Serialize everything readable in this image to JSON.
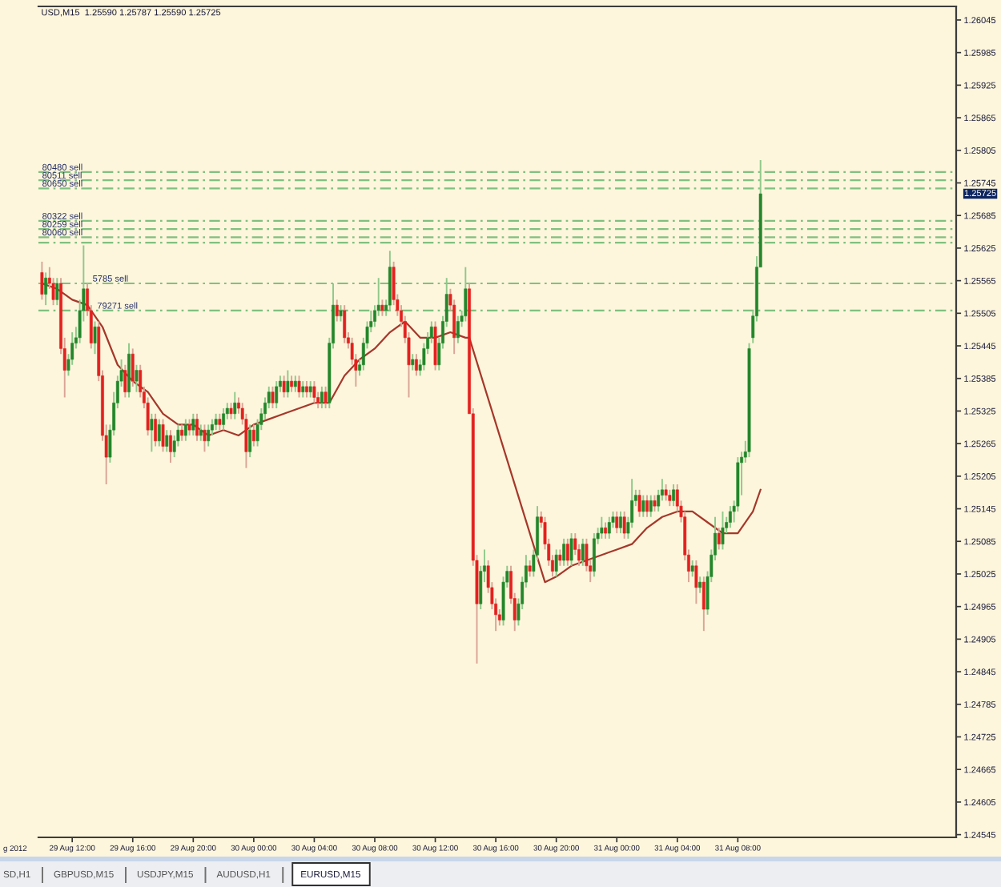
{
  "chart_data": {
    "type": "candlestick",
    "title": "USD,M15  1.25590 1.25787 1.25590 1.25725",
    "x": [
      "2012-08-29T10:00",
      "2012-08-29T10:15",
      "2012-08-29T10:30",
      "2012-08-29T10:45",
      "2012-08-29T11:00",
      "2012-08-29T11:15",
      "2012-08-29T11:30",
      "2012-08-29T11:45",
      "2012-08-29T12:00",
      "2012-08-29T12:15",
      "2012-08-29T12:30",
      "2012-08-29T12:45",
      "2012-08-29T13:00",
      "2012-08-29T13:15",
      "2012-08-29T13:30",
      "2012-08-29T13:45",
      "2012-08-29T14:00",
      "2012-08-29T14:15",
      "2012-08-29T14:30",
      "2012-08-29T14:45",
      "2012-08-29T15:00",
      "2012-08-29T15:15",
      "2012-08-29T15:30",
      "2012-08-29T15:45",
      "2012-08-29T16:00",
      "2012-08-29T16:15",
      "2012-08-29T16:30",
      "2012-08-29T16:45",
      "2012-08-29T17:00",
      "2012-08-29T17:15",
      "2012-08-29T17:30",
      "2012-08-29T17:45",
      "2012-08-29T18:00",
      "2012-08-29T18:15",
      "2012-08-29T18:30",
      "2012-08-29T18:45",
      "2012-08-29T19:00",
      "2012-08-29T19:15",
      "2012-08-29T19:30",
      "2012-08-29T19:45",
      "2012-08-29T20:00",
      "2012-08-29T20:15",
      "2012-08-29T20:30",
      "2012-08-29T20:45",
      "2012-08-29T21:00",
      "2012-08-29T21:15",
      "2012-08-29T21:30",
      "2012-08-29T21:45",
      "2012-08-29T22:00",
      "2012-08-29T22:15",
      "2012-08-29T22:30",
      "2012-08-29T22:45",
      "2012-08-29T23:00",
      "2012-08-29T23:15",
      "2012-08-29T23:30",
      "2012-08-29T23:45",
      "2012-08-30T00:00",
      "2012-08-30T00:15",
      "2012-08-30T00:30",
      "2012-08-30T00:45",
      "2012-08-30T01:00",
      "2012-08-30T01:15",
      "2012-08-30T01:30",
      "2012-08-30T01:45",
      "2012-08-30T02:00",
      "2012-08-30T02:15",
      "2012-08-30T02:30",
      "2012-08-30T02:45",
      "2012-08-30T03:00",
      "2012-08-30T03:15",
      "2012-08-30T03:30",
      "2012-08-30T03:45",
      "2012-08-30T04:00",
      "2012-08-30T04:15",
      "2012-08-30T04:30",
      "2012-08-30T04:45",
      "2012-08-30T05:00",
      "2012-08-30T05:15",
      "2012-08-30T05:30",
      "2012-08-30T05:45",
      "2012-08-30T06:00",
      "2012-08-30T06:15",
      "2012-08-30T06:30",
      "2012-08-30T06:45",
      "2012-08-30T07:00",
      "2012-08-30T07:15",
      "2012-08-30T07:30",
      "2012-08-30T07:45",
      "2012-08-30T08:00",
      "2012-08-30T08:15",
      "2012-08-30T08:30",
      "2012-08-30T08:45",
      "2012-08-30T09:00",
      "2012-08-30T09:15",
      "2012-08-30T09:30",
      "2012-08-30T09:45",
      "2012-08-30T10:00",
      "2012-08-30T10:15",
      "2012-08-30T10:30",
      "2012-08-30T10:45",
      "2012-08-30T11:00",
      "2012-08-30T11:15",
      "2012-08-30T11:30",
      "2012-08-30T11:45",
      "2012-08-30T12:00",
      "2012-08-30T12:15",
      "2012-08-30T12:30",
      "2012-08-30T12:45",
      "2012-08-30T13:00",
      "2012-08-30T13:15",
      "2012-08-30T13:30",
      "2012-08-30T13:45",
      "2012-08-30T14:00",
      "2012-08-30T14:15",
      "2012-08-30T14:30",
      "2012-08-30T14:45",
      "2012-08-30T15:00",
      "2012-08-30T15:15",
      "2012-08-30T15:30",
      "2012-08-30T15:45",
      "2012-08-30T16:00",
      "2012-08-30T16:15",
      "2012-08-30T16:30",
      "2012-08-30T16:45",
      "2012-08-30T17:00",
      "2012-08-30T17:15",
      "2012-08-30T17:30",
      "2012-08-30T17:45",
      "2012-08-30T18:00",
      "2012-08-30T18:15",
      "2012-08-30T18:30",
      "2012-08-30T18:45",
      "2012-08-30T19:00",
      "2012-08-30T19:15",
      "2012-08-30T19:30",
      "2012-08-30T19:45",
      "2012-08-30T20:00",
      "2012-08-30T20:15",
      "2012-08-30T20:30",
      "2012-08-30T20:45",
      "2012-08-30T21:00",
      "2012-08-30T21:15",
      "2012-08-30T21:30",
      "2012-08-30T21:45",
      "2012-08-30T22:00",
      "2012-08-30T22:15",
      "2012-08-30T22:30",
      "2012-08-30T22:45",
      "2012-08-30T23:00",
      "2012-08-30T23:15",
      "2012-08-30T23:30",
      "2012-08-30T23:45",
      "2012-08-31T00:00",
      "2012-08-31T00:15",
      "2012-08-31T00:30",
      "2012-08-31T00:45",
      "2012-08-31T01:00",
      "2012-08-31T01:15",
      "2012-08-31T01:30",
      "2012-08-31T01:45",
      "2012-08-31T02:00",
      "2012-08-31T02:15",
      "2012-08-31T02:30",
      "2012-08-31T02:45",
      "2012-08-31T03:00",
      "2012-08-31T03:15",
      "2012-08-31T03:30",
      "2012-08-31T03:45",
      "2012-08-31T04:00",
      "2012-08-31T04:15",
      "2012-08-31T04:30",
      "2012-08-31T04:45",
      "2012-08-31T05:00",
      "2012-08-31T05:15",
      "2012-08-31T05:30",
      "2012-08-31T05:45",
      "2012-08-31T06:00",
      "2012-08-31T06:15",
      "2012-08-31T06:30",
      "2012-08-31T06:45",
      "2012-08-31T07:00",
      "2012-08-31T07:15",
      "2012-08-31T07:30",
      "2012-08-31T07:45",
      "2012-08-31T08:00",
      "2012-08-31T08:15",
      "2012-08-31T08:30",
      "2012-08-31T08:45",
      "2012-08-31T09:00",
      "2012-08-31T09:15",
      "2012-08-31T09:30"
    ],
    "ohlc": [
      [
        1.2558,
        1.256,
        1.2553,
        1.2554
      ],
      [
        1.2554,
        1.2558,
        1.2552,
        1.2557
      ],
      [
        1.2557,
        1.2559,
        1.2555,
        1.2556
      ],
      [
        1.2556,
        1.2557,
        1.2552,
        1.2553
      ],
      [
        1.2553,
        1.2557,
        1.2552,
        1.2556
      ],
      [
        1.2556,
        1.2557,
        1.2543,
        1.2544
      ],
      [
        1.2544,
        1.2546,
        1.2535,
        1.254
      ],
      [
        1.254,
        1.2543,
        1.2539,
        1.2542
      ],
      [
        1.2542,
        1.2547,
        1.2541,
        1.2545
      ],
      [
        1.2545,
        1.2548,
        1.2544,
        1.2546
      ],
      [
        1.2546,
        1.2553,
        1.2545,
        1.2551
      ],
      [
        1.2551,
        1.2563,
        1.2549,
        1.2555
      ],
      [
        1.2555,
        1.2556,
        1.255,
        1.2551
      ],
      [
        1.2551,
        1.2552,
        1.2544,
        1.2545
      ],
      [
        1.2545,
        1.2549,
        1.2543,
        1.2548
      ],
      [
        1.2548,
        1.2549,
        1.2538,
        1.2539
      ],
      [
        1.2539,
        1.254,
        1.2527,
        1.2528
      ],
      [
        1.2528,
        1.253,
        1.2519,
        1.2524
      ],
      [
        1.2524,
        1.253,
        1.2523,
        1.2529
      ],
      [
        1.2529,
        1.2536,
        1.2528,
        1.2534
      ],
      [
        1.2534,
        1.2539,
        1.2533,
        1.2538
      ],
      [
        1.2538,
        1.2542,
        1.2537,
        1.254
      ],
      [
        1.254,
        1.2541,
        1.2535,
        1.2536
      ],
      [
        1.2536,
        1.2545,
        1.2535,
        1.2543
      ],
      [
        1.2543,
        1.2544,
        1.2537,
        1.2538
      ],
      [
        1.2538,
        1.2541,
        1.2536,
        1.254
      ],
      [
        1.254,
        1.2541,
        1.2535,
        1.2536
      ],
      [
        1.2536,
        1.2537,
        1.2533,
        1.2534
      ],
      [
        1.2534,
        1.2535,
        1.2528,
        1.2529
      ],
      [
        1.2529,
        1.2532,
        1.2525,
        1.2531
      ],
      [
        1.2531,
        1.2532,
        1.2526,
        1.2527
      ],
      [
        1.2527,
        1.2531,
        1.2526,
        1.253
      ],
      [
        1.253,
        1.2531,
        1.2525,
        1.2526
      ],
      [
        1.2526,
        1.2529,
        1.2525,
        1.2528
      ],
      [
        1.2528,
        1.2529,
        1.2523,
        1.2525
      ],
      [
        1.2525,
        1.2528,
        1.2524,
        1.2527
      ],
      [
        1.2527,
        1.253,
        1.2526,
        1.2529
      ],
      [
        1.2529,
        1.253,
        1.2527,
        1.2528
      ],
      [
        1.2528,
        1.2531,
        1.2527,
        1.253
      ],
      [
        1.253,
        1.2531,
        1.2528,
        1.2529
      ],
      [
        1.2529,
        1.2532,
        1.2528,
        1.2531
      ],
      [
        1.2531,
        1.2532,
        1.2527,
        1.2528
      ],
      [
        1.2528,
        1.253,
        1.2527,
        1.2529
      ],
      [
        1.2529,
        1.253,
        1.2525,
        1.2527
      ],
      [
        1.2527,
        1.253,
        1.2526,
        1.2529
      ],
      [
        1.2529,
        1.2531,
        1.2528,
        1.253
      ],
      [
        1.253,
        1.2532,
        1.2529,
        1.2531
      ],
      [
        1.2531,
        1.2532,
        1.2529,
        1.253
      ],
      [
        1.253,
        1.2533,
        1.2529,
        1.2532
      ],
      [
        1.2532,
        1.2534,
        1.2531,
        1.2533
      ],
      [
        1.2533,
        1.2534,
        1.2531,
        1.2532
      ],
      [
        1.2532,
        1.2536,
        1.2531,
        1.2534
      ],
      [
        1.2534,
        1.2535,
        1.2532,
        1.2533
      ],
      [
        1.2533,
        1.2534,
        1.253,
        1.2531
      ],
      [
        1.2531,
        1.2532,
        1.2522,
        1.2525
      ],
      [
        1.2525,
        1.253,
        1.2524,
        1.2529
      ],
      [
        1.2529,
        1.253,
        1.2526,
        1.2527
      ],
      [
        1.2527,
        1.2531,
        1.2526,
        1.253
      ],
      [
        1.253,
        1.2533,
        1.2529,
        1.2532
      ],
      [
        1.2532,
        1.2535,
        1.2531,
        1.2534
      ],
      [
        1.2534,
        1.2537,
        1.2533,
        1.2536
      ],
      [
        1.2536,
        1.2537,
        1.2533,
        1.2534
      ],
      [
        1.2534,
        1.2538,
        1.2533,
        1.2537
      ],
      [
        1.2537,
        1.2539,
        1.2536,
        1.2538
      ],
      [
        1.2538,
        1.2539,
        1.2535,
        1.2536
      ],
      [
        1.2536,
        1.254,
        1.2535,
        1.2538
      ],
      [
        1.2538,
        1.2539,
        1.2536,
        1.2537
      ],
      [
        1.2537,
        1.2539,
        1.2536,
        1.2538
      ],
      [
        1.2538,
        1.2539,
        1.2535,
        1.2536
      ],
      [
        1.2536,
        1.2538,
        1.2535,
        1.2537
      ],
      [
        1.2537,
        1.2538,
        1.2535,
        1.2536
      ],
      [
        1.2536,
        1.2538,
        1.2535,
        1.2537
      ],
      [
        1.2537,
        1.2538,
        1.2534,
        1.2535
      ],
      [
        1.2535,
        1.2536,
        1.2533,
        1.2534
      ],
      [
        1.2534,
        1.2537,
        1.2533,
        1.2536
      ],
      [
        1.2536,
        1.2537,
        1.2533,
        1.2534
      ],
      [
        1.2534,
        1.2546,
        1.2533,
        1.2545
      ],
      [
        1.2545,
        1.2556,
        1.2544,
        1.2552
      ],
      [
        1.2552,
        1.2553,
        1.2549,
        1.255
      ],
      [
        1.255,
        1.2552,
        1.2549,
        1.2551
      ],
      [
        1.2551,
        1.2552,
        1.2545,
        1.2546
      ],
      [
        1.2546,
        1.2547,
        1.2544,
        1.2545
      ],
      [
        1.2545,
        1.2546,
        1.2541,
        1.2542
      ],
      [
        1.2542,
        1.2543,
        1.2537,
        1.254
      ],
      [
        1.254,
        1.2542,
        1.2539,
        1.2541
      ],
      [
        1.2541,
        1.2546,
        1.254,
        1.2545
      ],
      [
        1.2545,
        1.2549,
        1.2544,
        1.2548
      ],
      [
        1.2548,
        1.2551,
        1.2547,
        1.2549
      ],
      [
        1.2549,
        1.2552,
        1.2548,
        1.2551
      ],
      [
        1.2551,
        1.2557,
        1.255,
        1.2552
      ],
      [
        1.2552,
        1.2553,
        1.255,
        1.2551
      ],
      [
        1.2551,
        1.2553,
        1.255,
        1.2552
      ],
      [
        1.2552,
        1.2562,
        1.2551,
        1.2559
      ],
      [
        1.2559,
        1.256,
        1.2552,
        1.2553
      ],
      [
        1.2553,
        1.2554,
        1.255,
        1.2551
      ],
      [
        1.2551,
        1.2552,
        1.2548,
        1.2549
      ],
      [
        1.2549,
        1.255,
        1.2545,
        1.2546
      ],
      [
        1.2546,
        1.2547,
        1.2535,
        1.2541
      ],
      [
        1.2541,
        1.2543,
        1.254,
        1.2542
      ],
      [
        1.2542,
        1.2543,
        1.2539,
        1.254
      ],
      [
        1.254,
        1.2542,
        1.2539,
        1.2541
      ],
      [
        1.2541,
        1.2545,
        1.254,
        1.2544
      ],
      [
        1.2544,
        1.2547,
        1.2543,
        1.2546
      ],
      [
        1.2546,
        1.2549,
        1.2545,
        1.2548
      ],
      [
        1.2548,
        1.2549,
        1.254,
        1.2541
      ],
      [
        1.2541,
        1.2546,
        1.254,
        1.2545
      ],
      [
        1.2545,
        1.255,
        1.2544,
        1.2549
      ],
      [
        1.2549,
        1.2557,
        1.2548,
        1.2554
      ],
      [
        1.2554,
        1.2555,
        1.2551,
        1.2552
      ],
      [
        1.2552,
        1.2553,
        1.2543,
        1.2546
      ],
      [
        1.2546,
        1.255,
        1.2545,
        1.2549
      ],
      [
        1.2549,
        1.2551,
        1.2548,
        1.255
      ],
      [
        1.255,
        1.2559,
        1.2549,
        1.2555
      ],
      [
        1.2555,
        1.2556,
        1.2532,
        1.2532
      ],
      [
        1.2532,
        1.2533,
        1.2504,
        1.2505
      ],
      [
        1.2505,
        1.2506,
        1.2486,
        1.2497
      ],
      [
        1.2497,
        1.2504,
        1.2496,
        1.2503
      ],
      [
        1.2503,
        1.2507,
        1.2501,
        1.2504
      ],
      [
        1.2504,
        1.2505,
        1.2499,
        1.25
      ],
      [
        1.25,
        1.2501,
        1.2496,
        1.2497
      ],
      [
        1.2497,
        1.2498,
        1.2492,
        1.2495
      ],
      [
        1.2495,
        1.2496,
        1.2493,
        1.2494
      ],
      [
        1.2494,
        1.2502,
        1.2493,
        1.2501
      ],
      [
        1.2501,
        1.2504,
        1.25,
        1.2503
      ],
      [
        1.2503,
        1.2504,
        1.2497,
        1.2498
      ],
      [
        1.2498,
        1.2499,
        1.2492,
        1.2494
      ],
      [
        1.2494,
        1.2498,
        1.2493,
        1.2497
      ],
      [
        1.2497,
        1.2502,
        1.2496,
        1.2501
      ],
      [
        1.2501,
        1.2506,
        1.25,
        1.2504
      ],
      [
        1.2504,
        1.2505,
        1.2502,
        1.2503
      ],
      [
        1.2503,
        1.2507,
        1.2502,
        1.2506
      ],
      [
        1.2506,
        1.2515,
        1.2505,
        1.2513
      ],
      [
        1.2513,
        1.2514,
        1.2511,
        1.2512
      ],
      [
        1.2512,
        1.2513,
        1.2507,
        1.2508
      ],
      [
        1.2508,
        1.2509,
        1.2504,
        1.2505
      ],
      [
        1.2505,
        1.2506,
        1.2502,
        1.2503
      ],
      [
        1.2503,
        1.2507,
        1.2502,
        1.2506
      ],
      [
        1.2506,
        1.2507,
        1.2504,
        1.2505
      ],
      [
        1.2505,
        1.2509,
        1.2504,
        1.2508
      ],
      [
        1.2508,
        1.2509,
        1.2504,
        1.2505
      ],
      [
        1.2505,
        1.251,
        1.2504,
        1.2509
      ],
      [
        1.2509,
        1.251,
        1.2506,
        1.2507
      ],
      [
        1.2507,
        1.2508,
        1.2504,
        1.2505
      ],
      [
        1.2505,
        1.2509,
        1.2504,
        1.2508
      ],
      [
        1.2508,
        1.2509,
        1.2503,
        1.2504
      ],
      [
        1.2504,
        1.2505,
        1.2501,
        1.2503
      ],
      [
        1.2503,
        1.251,
        1.2502,
        1.2509
      ],
      [
        1.2509,
        1.2511,
        1.2508,
        1.251
      ],
      [
        1.251,
        1.2513,
        1.2509,
        1.2511
      ],
      [
        1.2511,
        1.2512,
        1.2509,
        1.251
      ],
      [
        1.251,
        1.2513,
        1.2509,
        1.2512
      ],
      [
        1.2512,
        1.2514,
        1.2511,
        1.2513
      ],
      [
        1.2513,
        1.2514,
        1.251,
        1.2511
      ],
      [
        1.2511,
        1.2514,
        1.251,
        1.2513
      ],
      [
        1.2513,
        1.2514,
        1.2509,
        1.251
      ],
      [
        1.251,
        1.2513,
        1.2509,
        1.2512
      ],
      [
        1.2512,
        1.252,
        1.2511,
        1.2516
      ],
      [
        1.2516,
        1.2518,
        1.2515,
        1.2517
      ],
      [
        1.2517,
        1.2518,
        1.2513,
        1.2514
      ],
      [
        1.2514,
        1.2517,
        1.2513,
        1.2516
      ],
      [
        1.2516,
        1.2517,
        1.2513,
        1.2514
      ],
      [
        1.2514,
        1.2517,
        1.2513,
        1.2516
      ],
      [
        1.2516,
        1.2517,
        1.2514,
        1.2515
      ],
      [
        1.2515,
        1.2518,
        1.2514,
        1.2517
      ],
      [
        1.2517,
        1.252,
        1.2516,
        1.2518
      ],
      [
        1.2518,
        1.2519,
        1.2516,
        1.2517
      ],
      [
        1.2517,
        1.2518,
        1.2515,
        1.2516
      ],
      [
        1.2516,
        1.2519,
        1.2515,
        1.2518
      ],
      [
        1.2518,
        1.2519,
        1.2514,
        1.2515
      ],
      [
        1.2515,
        1.2516,
        1.2512,
        1.2513
      ],
      [
        1.2513,
        1.2514,
        1.2505,
        1.2506
      ],
      [
        1.2506,
        1.2507,
        1.2501,
        1.2503
      ],
      [
        1.2503,
        1.2505,
        1.2502,
        1.2504
      ],
      [
        1.2504,
        1.2505,
        1.2497,
        1.25
      ],
      [
        1.25,
        1.2502,
        1.2499,
        1.2501
      ],
      [
        1.2501,
        1.2502,
        1.2492,
        1.2496
      ],
      [
        1.2496,
        1.2503,
        1.2495,
        1.2502
      ],
      [
        1.2502,
        1.2507,
        1.2501,
        1.2506
      ],
      [
        1.2506,
        1.2513,
        1.2505,
        1.251
      ],
      [
        1.251,
        1.2511,
        1.2507,
        1.2508
      ],
      [
        1.2508,
        1.2514,
        1.2507,
        1.2511
      ],
      [
        1.2511,
        1.2513,
        1.251,
        1.2512
      ],
      [
        1.2512,
        1.2515,
        1.2511,
        1.2514
      ],
      [
        1.2514,
        1.2516,
        1.2512,
        1.2515
      ],
      [
        1.2515,
        1.2524,
        1.2514,
        1.2523
      ],
      [
        1.2523,
        1.2525,
        1.2517,
        1.2524
      ],
      [
        1.2524,
        1.2527,
        1.2523,
        1.2525
      ],
      [
        1.2525,
        1.2545,
        1.2524,
        1.2544
      ],
      [
        1.2546,
        1.2551,
        1.2545,
        1.255
      ],
      [
        1.255,
        1.2561,
        1.2549,
        1.2559
      ],
      [
        1.2559,
        1.25787,
        1.2559,
        1.25725
      ]
    ],
    "series": [
      {
        "type": "line",
        "color": "#a5382b",
        "x": [
          "2012-08-29T10:00",
          "2012-08-29T11:00",
          "2012-08-29T12:00",
          "2012-08-29T13:00",
          "2012-08-29T14:00",
          "2012-08-29T15:00",
          "2012-08-29T16:00",
          "2012-08-29T17:00",
          "2012-08-29T18:00",
          "2012-08-29T19:00",
          "2012-08-29T20:00",
          "2012-08-29T21:00",
          "2012-08-29T22:00",
          "2012-08-29T23:00",
          "2012-08-30T00:00",
          "2012-08-30T01:00",
          "2012-08-30T02:00",
          "2012-08-30T03:00",
          "2012-08-30T04:00",
          "2012-08-30T05:00",
          "2012-08-30T06:00",
          "2012-08-30T07:00",
          "2012-08-30T08:00",
          "2012-08-30T09:00",
          "2012-08-30T10:00",
          "2012-08-30T11:00",
          "2012-08-30T12:00",
          "2012-08-30T13:00",
          "2012-08-30T14:00",
          "2012-08-30T14:15",
          "2012-08-30T19:15",
          "2012-08-30T20:00",
          "2012-08-30T21:00",
          "2012-08-30T22:00",
          "2012-08-30T23:00",
          "2012-08-31T00:00",
          "2012-08-31T01:00",
          "2012-08-31T02:00",
          "2012-08-31T03:00",
          "2012-08-31T04:00",
          "2012-08-31T05:00",
          "2012-08-31T06:00",
          "2012-08-31T07:00",
          "2012-08-31T08:00",
          "2012-08-31T09:00",
          "2012-08-31T09:30"
        ],
        "values": [
          1.2556,
          1.2555,
          1.2553,
          1.2552,
          1.2548,
          1.2541,
          1.2538,
          1.2536,
          1.2532,
          1.253,
          1.253,
          1.2528,
          1.2529,
          1.2528,
          1.253,
          1.2531,
          1.2532,
          1.2533,
          1.2534,
          1.2534,
          1.2539,
          1.2542,
          1.2544,
          1.2547,
          1.2549,
          1.2546,
          1.2546,
          1.2547,
          1.2546,
          1.2546,
          1.2501,
          1.2502,
          1.2504,
          1.2505,
          1.2506,
          1.2507,
          1.2508,
          1.2511,
          1.2513,
          1.2514,
          1.2514,
          1.2512,
          1.251,
          1.251,
          1.2514,
          1.2518
        ]
      }
    ],
    "xlim": [
      "2012-08-29T09:46",
      "2012-08-31T22:26"
    ],
    "xticks": [
      {
        "value": "2012-08-29T12:00",
        "label": "29 Aug 12:00"
      },
      {
        "value": "2012-08-29T16:00",
        "label": "29 Aug 16:00"
      },
      {
        "value": "2012-08-29T20:00",
        "label": "29 Aug 20:00"
      },
      {
        "value": "2012-08-30T00:00",
        "label": "30 Aug 00:00"
      },
      {
        "value": "2012-08-30T04:00",
        "label": "30 Aug 04:00"
      },
      {
        "value": "2012-08-30T08:00",
        "label": "30 Aug 08:00"
      },
      {
        "value": "2012-08-30T12:00",
        "label": "30 Aug 12:00"
      },
      {
        "value": "2012-08-30T16:00",
        "label": "30 Aug 16:00"
      },
      {
        "value": "2012-08-30T20:00",
        "label": "30 Aug 20:00"
      },
      {
        "value": "2012-08-31T00:00",
        "label": "31 Aug 00:00"
      },
      {
        "value": "2012-08-31T04:00",
        "label": "31 Aug 04:00"
      },
      {
        "value": "2012-08-31T08:00",
        "label": "31 Aug 08:00"
      }
    ],
    "ylim": [
      1.2454,
      1.2607
    ],
    "yticks": [
      1.24545,
      1.24605,
      1.24665,
      1.24725,
      1.24785,
      1.24845,
      1.24905,
      1.24965,
      1.25025,
      1.25085,
      1.25145,
      1.25205,
      1.25265,
      1.25325,
      1.25385,
      1.25445,
      1.25505,
      1.25565,
      1.25625,
      1.25685,
      1.25745,
      1.25805,
      1.25865,
      1.25925,
      1.25985,
      1.26045
    ],
    "ref_lines": [
      {
        "axis": "y",
        "value": 1.25765,
        "label": "80480 sell",
        "color": "#80c080",
        "line_style": "dashed"
      },
      {
        "axis": "y",
        "value": 1.2575,
        "label": "80511 sell",
        "color": "#80c080",
        "line_style": "dashed"
      },
      {
        "axis": "y",
        "value": 1.25735,
        "label": "80650 sell",
        "color": "#80c080",
        "line_style": "dashed"
      },
      {
        "axis": "y",
        "value": 1.25675,
        "label": "80322 sell",
        "color": "#80c080",
        "line_style": "dashed"
      },
      {
        "axis": "y",
        "value": 1.2566,
        "label": "80259 sell",
        "color": "#80c080",
        "line_style": "dashed"
      },
      {
        "axis": "y",
        "value": 1.25645,
        "label": "80060 sell",
        "color": "#80c080",
        "line_style": "dashed"
      },
      {
        "axis": "y",
        "value": 1.25635,
        "color": "#80c080",
        "line_style": "dashed"
      },
      {
        "axis": "y",
        "value": 1.2556,
        "label": "5785 sell",
        "color": "#80c080",
        "line_style": "dashed"
      },
      {
        "axis": "y",
        "value": 1.2551,
        "label": "79271 sell",
        "color": "#80c080",
        "line_style": "dashed"
      }
    ],
    "annotations": [
      "1.25725",
      "g 2012",
      "SD,H1",
      "GBPUSD,M15",
      "USDJPY,M15",
      "AUDUSD,H1",
      "EURUSD,M15"
    ]
  }
}
